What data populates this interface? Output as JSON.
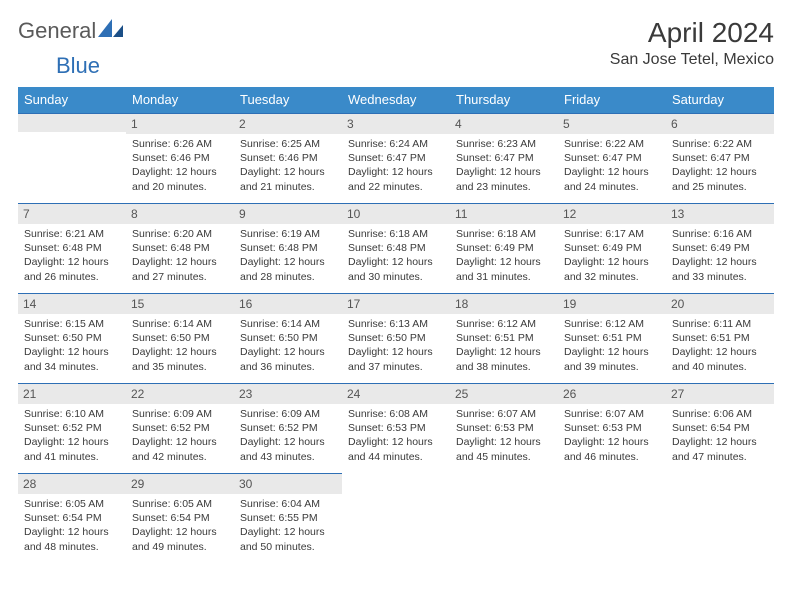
{
  "brand": {
    "word1": "General",
    "word2": "Blue"
  },
  "title": "April 2024",
  "subtitle": "San Jose Tetel, Mexico",
  "style": {
    "header_bg": "#3a8ac9",
    "header_text": "#ffffff",
    "strip_bg": "#e9e9e9",
    "strip_border": "#2e6fb5",
    "body_text": "#3a3a3a",
    "logo_gray": "#5a5a5a",
    "logo_blue": "#2e6fb5",
    "title_fontsize": 28,
    "subtitle_fontsize": 16,
    "body_fontsize": 10.5,
    "daynum_fontsize": 12
  },
  "day_headers": [
    "Sunday",
    "Monday",
    "Tuesday",
    "Wednesday",
    "Thursday",
    "Friday",
    "Saturday"
  ],
  "weeks": [
    [
      {
        "blank": true
      },
      {
        "n": "1",
        "sunrise": "Sunrise: 6:26 AM",
        "sunset": "Sunset: 6:46 PM",
        "d1": "Daylight: 12 hours",
        "d2": "and 20 minutes."
      },
      {
        "n": "2",
        "sunrise": "Sunrise: 6:25 AM",
        "sunset": "Sunset: 6:46 PM",
        "d1": "Daylight: 12 hours",
        "d2": "and 21 minutes."
      },
      {
        "n": "3",
        "sunrise": "Sunrise: 6:24 AM",
        "sunset": "Sunset: 6:47 PM",
        "d1": "Daylight: 12 hours",
        "d2": "and 22 minutes."
      },
      {
        "n": "4",
        "sunrise": "Sunrise: 6:23 AM",
        "sunset": "Sunset: 6:47 PM",
        "d1": "Daylight: 12 hours",
        "d2": "and 23 minutes."
      },
      {
        "n": "5",
        "sunrise": "Sunrise: 6:22 AM",
        "sunset": "Sunset: 6:47 PM",
        "d1": "Daylight: 12 hours",
        "d2": "and 24 minutes."
      },
      {
        "n": "6",
        "sunrise": "Sunrise: 6:22 AM",
        "sunset": "Sunset: 6:47 PM",
        "d1": "Daylight: 12 hours",
        "d2": "and 25 minutes."
      }
    ],
    [
      {
        "n": "7",
        "sunrise": "Sunrise: 6:21 AM",
        "sunset": "Sunset: 6:48 PM",
        "d1": "Daylight: 12 hours",
        "d2": "and 26 minutes."
      },
      {
        "n": "8",
        "sunrise": "Sunrise: 6:20 AM",
        "sunset": "Sunset: 6:48 PM",
        "d1": "Daylight: 12 hours",
        "d2": "and 27 minutes."
      },
      {
        "n": "9",
        "sunrise": "Sunrise: 6:19 AM",
        "sunset": "Sunset: 6:48 PM",
        "d1": "Daylight: 12 hours",
        "d2": "and 28 minutes."
      },
      {
        "n": "10",
        "sunrise": "Sunrise: 6:18 AM",
        "sunset": "Sunset: 6:48 PM",
        "d1": "Daylight: 12 hours",
        "d2": "and 30 minutes."
      },
      {
        "n": "11",
        "sunrise": "Sunrise: 6:18 AM",
        "sunset": "Sunset: 6:49 PM",
        "d1": "Daylight: 12 hours",
        "d2": "and 31 minutes."
      },
      {
        "n": "12",
        "sunrise": "Sunrise: 6:17 AM",
        "sunset": "Sunset: 6:49 PM",
        "d1": "Daylight: 12 hours",
        "d2": "and 32 minutes."
      },
      {
        "n": "13",
        "sunrise": "Sunrise: 6:16 AM",
        "sunset": "Sunset: 6:49 PM",
        "d1": "Daylight: 12 hours",
        "d2": "and 33 minutes."
      }
    ],
    [
      {
        "n": "14",
        "sunrise": "Sunrise: 6:15 AM",
        "sunset": "Sunset: 6:50 PM",
        "d1": "Daylight: 12 hours",
        "d2": "and 34 minutes."
      },
      {
        "n": "15",
        "sunrise": "Sunrise: 6:14 AM",
        "sunset": "Sunset: 6:50 PM",
        "d1": "Daylight: 12 hours",
        "d2": "and 35 minutes."
      },
      {
        "n": "16",
        "sunrise": "Sunrise: 6:14 AM",
        "sunset": "Sunset: 6:50 PM",
        "d1": "Daylight: 12 hours",
        "d2": "and 36 minutes."
      },
      {
        "n": "17",
        "sunrise": "Sunrise: 6:13 AM",
        "sunset": "Sunset: 6:50 PM",
        "d1": "Daylight: 12 hours",
        "d2": "and 37 minutes."
      },
      {
        "n": "18",
        "sunrise": "Sunrise: 6:12 AM",
        "sunset": "Sunset: 6:51 PM",
        "d1": "Daylight: 12 hours",
        "d2": "and 38 minutes."
      },
      {
        "n": "19",
        "sunrise": "Sunrise: 6:12 AM",
        "sunset": "Sunset: 6:51 PM",
        "d1": "Daylight: 12 hours",
        "d2": "and 39 minutes."
      },
      {
        "n": "20",
        "sunrise": "Sunrise: 6:11 AM",
        "sunset": "Sunset: 6:51 PM",
        "d1": "Daylight: 12 hours",
        "d2": "and 40 minutes."
      }
    ],
    [
      {
        "n": "21",
        "sunrise": "Sunrise: 6:10 AM",
        "sunset": "Sunset: 6:52 PM",
        "d1": "Daylight: 12 hours",
        "d2": "and 41 minutes."
      },
      {
        "n": "22",
        "sunrise": "Sunrise: 6:09 AM",
        "sunset": "Sunset: 6:52 PM",
        "d1": "Daylight: 12 hours",
        "d2": "and 42 minutes."
      },
      {
        "n": "23",
        "sunrise": "Sunrise: 6:09 AM",
        "sunset": "Sunset: 6:52 PM",
        "d1": "Daylight: 12 hours",
        "d2": "and 43 minutes."
      },
      {
        "n": "24",
        "sunrise": "Sunrise: 6:08 AM",
        "sunset": "Sunset: 6:53 PM",
        "d1": "Daylight: 12 hours",
        "d2": "and 44 minutes."
      },
      {
        "n": "25",
        "sunrise": "Sunrise: 6:07 AM",
        "sunset": "Sunset: 6:53 PM",
        "d1": "Daylight: 12 hours",
        "d2": "and 45 minutes."
      },
      {
        "n": "26",
        "sunrise": "Sunrise: 6:07 AM",
        "sunset": "Sunset: 6:53 PM",
        "d1": "Daylight: 12 hours",
        "d2": "and 46 minutes."
      },
      {
        "n": "27",
        "sunrise": "Sunrise: 6:06 AM",
        "sunset": "Sunset: 6:54 PM",
        "d1": "Daylight: 12 hours",
        "d2": "and 47 minutes."
      }
    ],
    [
      {
        "n": "28",
        "sunrise": "Sunrise: 6:05 AM",
        "sunset": "Sunset: 6:54 PM",
        "d1": "Daylight: 12 hours",
        "d2": "and 48 minutes."
      },
      {
        "n": "29",
        "sunrise": "Sunrise: 6:05 AM",
        "sunset": "Sunset: 6:54 PM",
        "d1": "Daylight: 12 hours",
        "d2": "and 49 minutes."
      },
      {
        "n": "30",
        "sunrise": "Sunrise: 6:04 AM",
        "sunset": "Sunset: 6:55 PM",
        "d1": "Daylight: 12 hours",
        "d2": "and 50 minutes."
      },
      {
        "blank": true,
        "nostrip": true
      },
      {
        "blank": true,
        "nostrip": true
      },
      {
        "blank": true,
        "nostrip": true
      },
      {
        "blank": true,
        "nostrip": true
      }
    ]
  ]
}
